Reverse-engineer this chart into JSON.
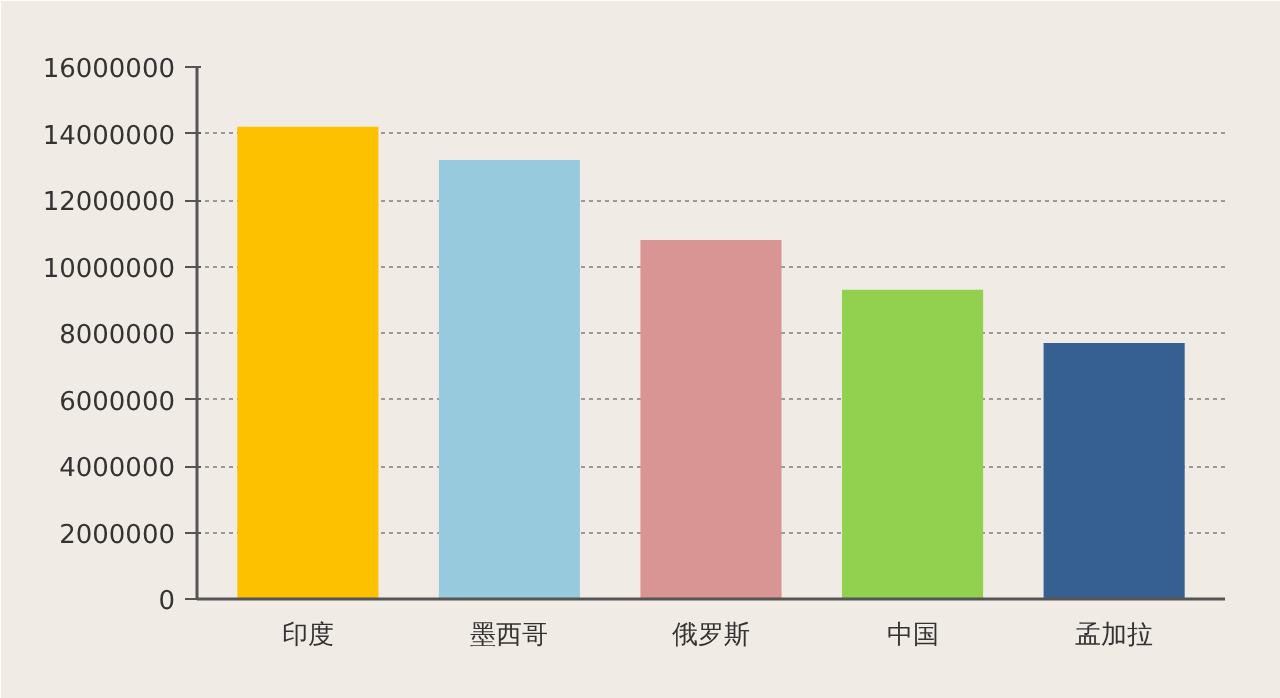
{
  "chart_data": {
    "type": "bar",
    "categories": [
      "印度",
      "墨西哥",
      "俄罗斯",
      "中国",
      "孟加拉"
    ],
    "values": [
      14200000,
      13200000,
      10800000,
      9300000,
      7700000
    ],
    "colors": [
      "#fdc100",
      "#98cade",
      "#d99594",
      "#92d050",
      "#366092"
    ],
    "ylim": [
      0,
      16000000
    ],
    "yticks": [
      0,
      2000000,
      4000000,
      6000000,
      8000000,
      10000000,
      12000000,
      14000000,
      16000000
    ],
    "grid": "y"
  }
}
